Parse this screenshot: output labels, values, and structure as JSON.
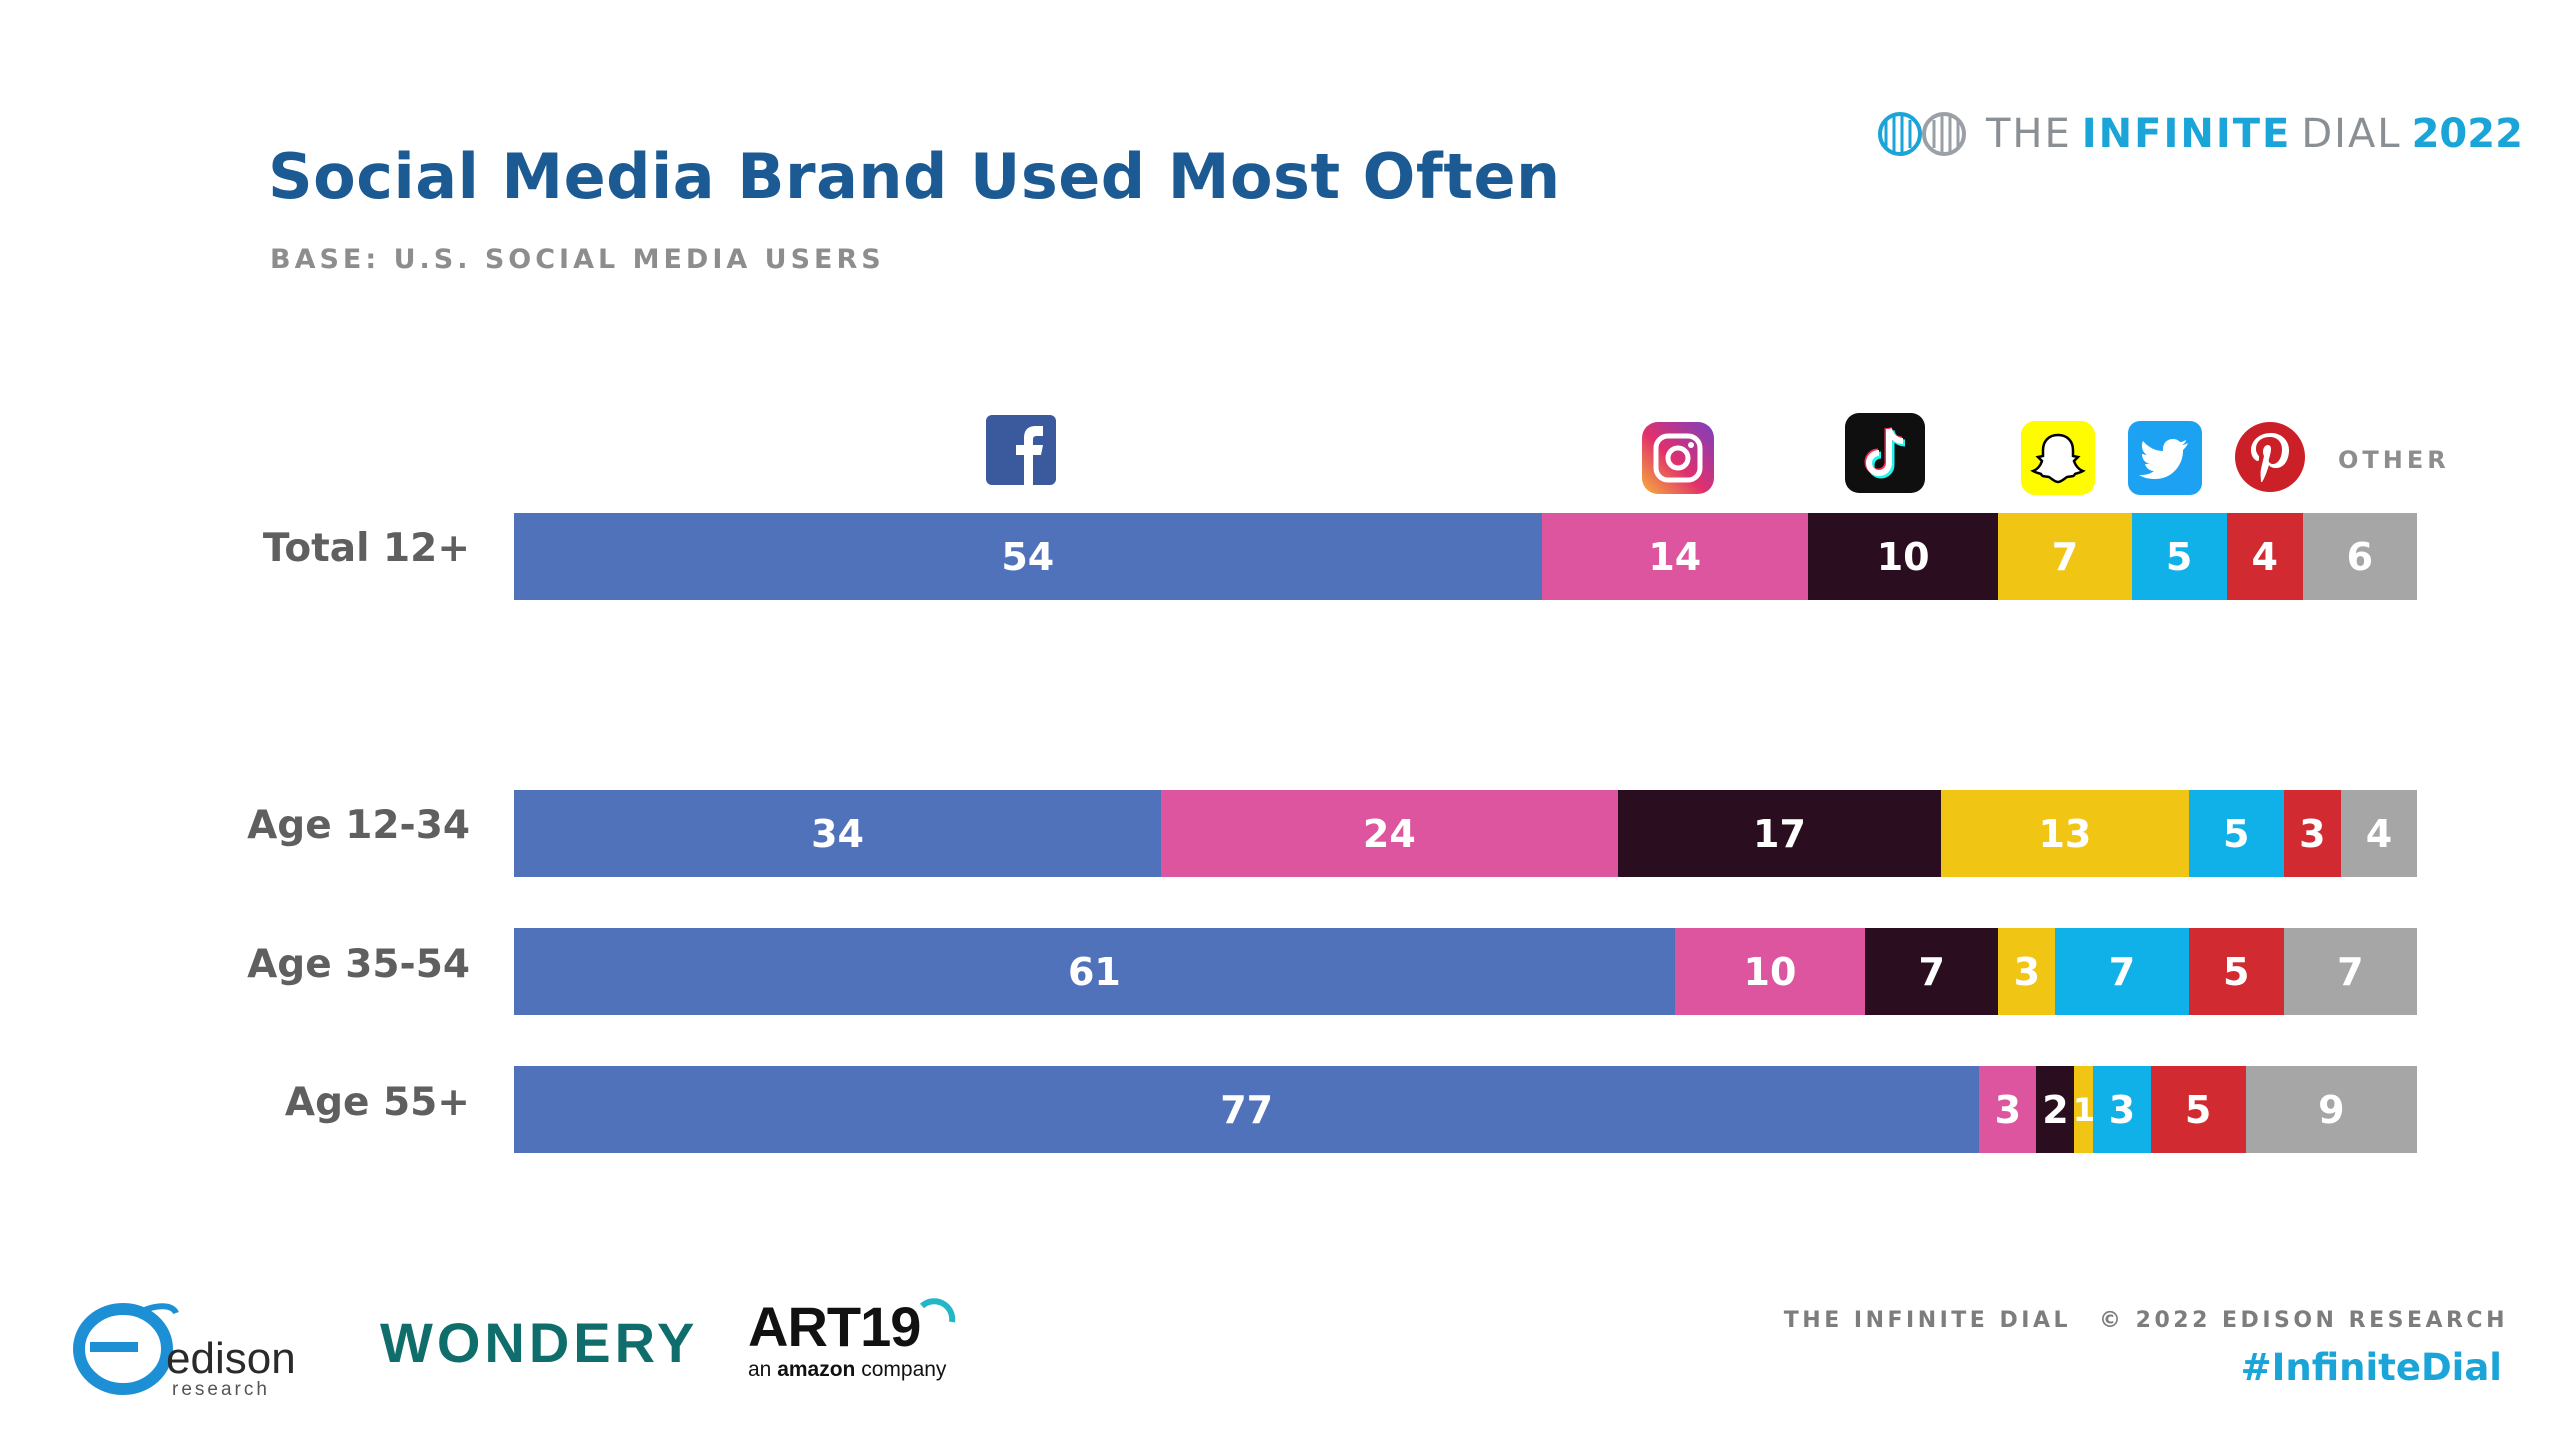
{
  "header": {
    "title": "Social Media Brand Used Most Often",
    "subtitle": "BASE: U.S. SOCIAL MEDIA USERS",
    "brand_the": "THE",
    "brand_infinite": "INFINITE",
    "brand_dial": "DIAL",
    "brand_year": "2022"
  },
  "chart_data": {
    "type": "bar",
    "orientation": "horizontal",
    "stacked": true,
    "title": "Social Media Brand Used Most Often",
    "subtitle": "BASE: U.S. SOCIAL MEDIA USERS",
    "categories": [
      "Total 12+",
      "Age 12-34",
      "Age 35-54",
      "Age 55+"
    ],
    "series": [
      {
        "name": "Facebook",
        "color": "#5072ba",
        "text_color": "#ffffff",
        "values": [
          54,
          34,
          61,
          77
        ]
      },
      {
        "name": "Instagram",
        "color": "#dd559e",
        "text_color": "#ffffff",
        "values": [
          14,
          24,
          10,
          3
        ]
      },
      {
        "name": "TikTok",
        "color": "#2a0e1f",
        "text_color": "#ffffff",
        "values": [
          10,
          17,
          7,
          2
        ]
      },
      {
        "name": "Snapchat",
        "color": "#f0c514",
        "text_color": "#ffffff",
        "values": [
          7,
          13,
          3,
          1
        ]
      },
      {
        "name": "Twitter",
        "color": "#0fb1e8",
        "text_color": "#ffffff",
        "values": [
          5,
          5,
          7,
          3
        ]
      },
      {
        "name": "Pinterest",
        "color": "#d12a31",
        "text_color": "#ffffff",
        "values": [
          4,
          3,
          5,
          5
        ]
      },
      {
        "name": "OTHER",
        "color": "#a6a6a6",
        "text_color": "#ffffff",
        "values": [
          6,
          4,
          7,
          9
        ]
      }
    ],
    "legend": "icons above top bar",
    "other_label": "OTHER"
  },
  "icons": [
    {
      "name": "facebook-icon",
      "series": "Facebook"
    },
    {
      "name": "instagram-icon",
      "series": "Instagram"
    },
    {
      "name": "tiktok-icon",
      "series": "TikTok"
    },
    {
      "name": "snapchat-icon",
      "series": "Snapchat"
    },
    {
      "name": "twitter-icon",
      "series": "Twitter"
    },
    {
      "name": "pinterest-icon",
      "series": "Pinterest"
    }
  ],
  "footer": {
    "left_text": "THE INFINITE DIAL",
    "copyright": "© 2022 EDISON RESEARCH",
    "hashtag": "#InfiniteDial"
  },
  "logos": {
    "edison": "edison",
    "edison_sub": "research",
    "wondery": "WONDERY",
    "art19": "ART19",
    "art19_sub_pre": "an ",
    "art19_sub_brand": "amazon",
    "art19_sub_post": " company"
  }
}
